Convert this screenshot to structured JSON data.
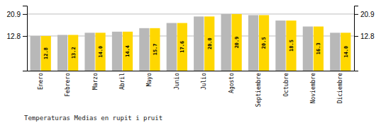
{
  "chart_data": {
    "type": "bar",
    "title": "Temperaturas Medias en rupit i pruit",
    "categories": [
      "Enero",
      "Febrero",
      "Marzo",
      "Abril",
      "Mayo",
      "Junio",
      "Julio",
      "Agosto",
      "Septiembre",
      "Octubre",
      "Noviembre",
      "Diciembre"
    ],
    "series": [
      {
        "color": "#B8B8B8",
        "values": [
          12.8,
          13.2,
          14.0,
          14.4,
          15.7,
          17.6,
          20.0,
          20.9,
          20.5,
          18.5,
          16.3,
          14.0
        ]
      },
      {
        "color": "#FFD700",
        "values": [
          12.8,
          13.2,
          14.0,
          14.4,
          15.7,
          17.6,
          20.0,
          20.9,
          20.5,
          18.5,
          16.3,
          14.0
        ],
        "value_labels": [
          "12.8",
          "13.2",
          "14.0",
          "14.4",
          "15.7",
          "17.6",
          "20.0",
          "20.9",
          "20.5",
          "18.5",
          "16.3",
          "14.0"
        ]
      }
    ],
    "ylim": [
      0,
      24.0
    ],
    "yticks": [
      12.8,
      20.9
    ],
    "y2lim": [
      0,
      24.0
    ],
    "y2ticks": [
      12.8,
      20.9
    ],
    "grid": true,
    "data_labels": true
  }
}
